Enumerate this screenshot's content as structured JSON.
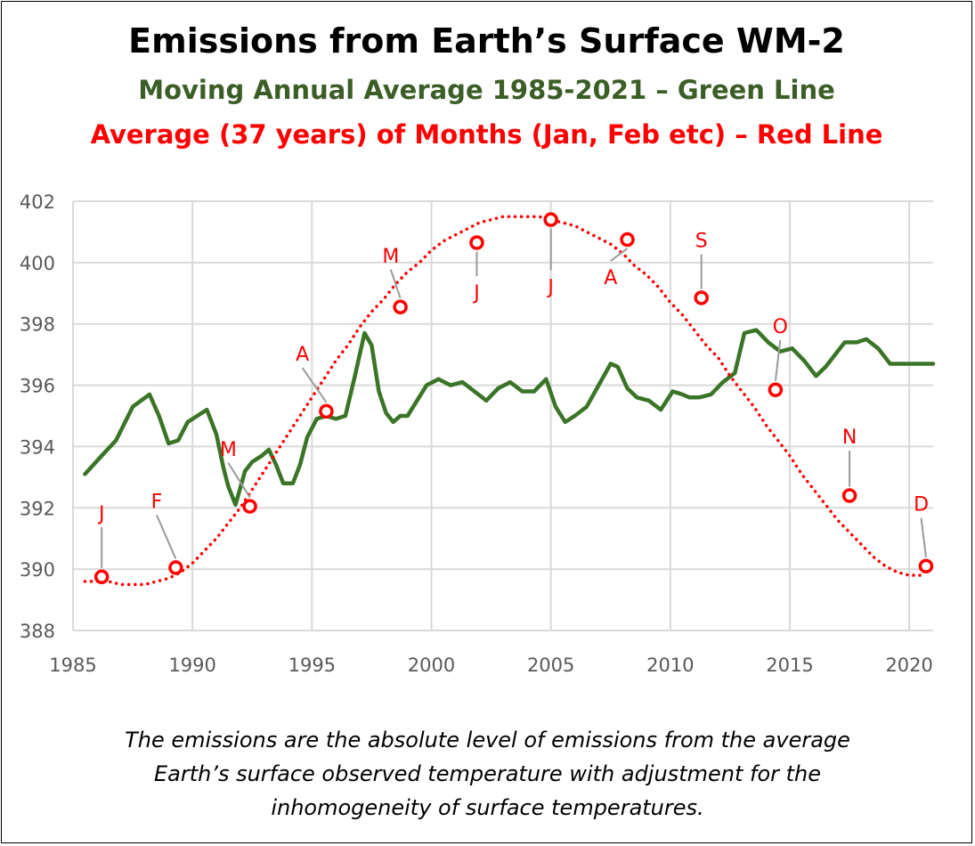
{
  "title": "Emissions from Earth’s Surface WM-2",
  "subtitle_green": "Moving Annual Average 1985-2021 – Green Line",
  "subtitle_red": "Average (37 years) of Months (Jan, Feb etc) – Red Line",
  "caption_lines": [
    "The emissions are the absolute level of emissions from the average",
    "Earth’s surface observed temperature with adjustment for the",
    "inhomogeneity of surface temperatures."
  ],
  "colors": {
    "green": "#3a7426",
    "red": "#ff0000",
    "grid": "#d9d9d9",
    "axis_text": "#595959"
  },
  "chart_data": {
    "type": "line",
    "title": "Emissions from Earth’s Surface WM-2",
    "xlabel": "",
    "ylabel": "",
    "xlim": [
      1985,
      2021
    ],
    "ylim": [
      388,
      402
    ],
    "x_ticks": [
      1985,
      1990,
      1995,
      2000,
      2005,
      2010,
      2015,
      2020
    ],
    "y_ticks": [
      388,
      390,
      392,
      394,
      396,
      398,
      400,
      402
    ],
    "grid": true,
    "series": [
      {
        "name": "Moving Annual Average 1985-2021",
        "color": "#3a7426",
        "x": [
          1985.5,
          1986.2,
          1986.8,
          1987.5,
          1988.2,
          1988.6,
          1989.0,
          1989.4,
          1989.8,
          1990.2,
          1990.6,
          1991.0,
          1991.3,
          1991.5,
          1991.8,
          1992.2,
          1992.5,
          1992.9,
          1993.2,
          1993.5,
          1993.8,
          1994.2,
          1994.5,
          1994.8,
          1995.2,
          1995.6,
          1996.0,
          1996.4,
          1996.8,
          1997.2,
          1997.5,
          1997.8,
          1998.1,
          1998.4,
          1998.7,
          1999.0,
          1999.4,
          1999.8,
          2000.3,
          2000.8,
          2001.3,
          2001.8,
          2002.3,
          2002.8,
          2003.3,
          2003.8,
          2004.3,
          2004.8,
          2005.2,
          2005.6,
          2006.0,
          2006.5,
          2007.0,
          2007.5,
          2007.8,
          2008.2,
          2008.6,
          2009.1,
          2009.6,
          2010.1,
          2010.5,
          2010.8,
          2011.2,
          2011.7,
          2012.2,
          2012.7,
          2013.1,
          2013.6,
          2014.1,
          2014.6,
          2015.1,
          2015.6,
          2016.1,
          2016.5,
          2016.9,
          2017.3,
          2017.8,
          2018.2,
          2018.7,
          2019.2,
          2019.7,
          2020.2,
          2020.6,
          2021.0
        ],
        "values": [
          393.1,
          393.7,
          394.2,
          395.3,
          395.7,
          395.0,
          394.1,
          394.2,
          394.8,
          395.0,
          395.2,
          394.4,
          393.3,
          392.7,
          392.1,
          393.2,
          393.5,
          393.7,
          393.9,
          393.4,
          392.8,
          392.8,
          393.4,
          394.3,
          394.9,
          395.0,
          394.9,
          395.0,
          396.3,
          397.7,
          397.3,
          395.8,
          395.1,
          394.8,
          395.0,
          395.0,
          395.5,
          396.0,
          396.2,
          396.0,
          396.1,
          395.8,
          395.5,
          395.9,
          396.1,
          395.8,
          395.8,
          396.2,
          395.3,
          394.8,
          395.0,
          395.3,
          396.0,
          396.7,
          396.6,
          395.9,
          395.6,
          395.5,
          395.2,
          395.8,
          395.7,
          395.6,
          395.6,
          395.7,
          396.1,
          396.4,
          397.7,
          397.8,
          397.4,
          397.1,
          397.2,
          396.8,
          396.3,
          396.6,
          397.0,
          397.4,
          397.4,
          397.5,
          397.2,
          396.7,
          396.7,
          396.7,
          396.7,
          396.7
        ]
      },
      {
        "name": "Average (37 years) of Months",
        "color": "#ff0000",
        "style": "dotted",
        "x": [
          1985.5,
          1986.0,
          1986.5,
          1987.0,
          1987.5,
          1988.0,
          1988.5,
          1989.0,
          1989.5,
          1990.0,
          1990.5,
          1991.0,
          1991.5,
          1992.0,
          1992.5,
          1993.0,
          1993.5,
          1994.0,
          1994.5,
          1995.0,
          1995.5,
          1996.0,
          1996.5,
          1997.0,
          1997.5,
          1998.0,
          1998.5,
          1999.0,
          1999.5,
          2000.0,
          2000.5,
          2001.0,
          2001.5,
          2002.0,
          2002.5,
          2003.0,
          2003.5,
          2004.0,
          2004.5,
          2005.0,
          2005.5,
          2006.0,
          2006.5,
          2007.0,
          2007.5,
          2008.0,
          2008.5,
          2009.0,
          2009.5,
          2010.0,
          2010.5,
          2011.0,
          2011.5,
          2012.0,
          2012.5,
          2013.0,
          2013.5,
          2014.0,
          2014.5,
          2015.0,
          2015.5,
          2016.0,
          2016.5,
          2017.0,
          2017.5,
          2018.0,
          2018.5,
          2019.0,
          2019.5,
          2020.0,
          2020.5
        ],
        "values": [
          389.6,
          389.6,
          389.6,
          389.5,
          389.5,
          389.5,
          389.6,
          389.7,
          389.9,
          390.2,
          390.6,
          391.0,
          391.5,
          392.0,
          392.6,
          393.2,
          393.8,
          394.4,
          395.0,
          395.6,
          396.2,
          396.8,
          397.3,
          397.9,
          398.4,
          398.8,
          399.3,
          399.7,
          400.0,
          400.4,
          400.7,
          400.9,
          401.1,
          401.3,
          401.4,
          401.5,
          401.5,
          401.5,
          401.5,
          401.4,
          401.3,
          401.2,
          401.0,
          400.8,
          400.6,
          400.3,
          399.9,
          399.6,
          399.2,
          398.7,
          398.3,
          397.8,
          397.3,
          396.9,
          396.3,
          395.8,
          395.3,
          394.7,
          394.2,
          393.7,
          393.1,
          392.6,
          392.1,
          391.6,
          391.2,
          390.8,
          390.4,
          390.1,
          389.9,
          389.8,
          389.8
        ]
      }
    ],
    "month_points": [
      {
        "month": "Jan",
        "label": "J",
        "x": 1986.2,
        "value": 389.75,
        "label_x": 1986.2,
        "label_value": 391.6
      },
      {
        "month": "Feb",
        "label": "F",
        "x": 1989.3,
        "value": 390.05,
        "label_x": 1988.5,
        "label_value": 392.0
      },
      {
        "month": "Mar",
        "label": "M",
        "x": 1992.4,
        "value": 392.05,
        "label_x": 1991.5,
        "label_value": 393.7
      },
      {
        "month": "Apr",
        "label": "A",
        "x": 1995.6,
        "value": 395.15,
        "label_x": 1994.6,
        "label_value": 396.8
      },
      {
        "month": "May",
        "label": "M",
        "x": 1998.7,
        "value": 398.55,
        "label_x": 1998.3,
        "label_value": 400.0
      },
      {
        "month": "Jun",
        "label": "J",
        "x": 2001.9,
        "value": 400.65,
        "label_x": 2001.9,
        "label_value": 398.8
      },
      {
        "month": "Jul",
        "label": "J",
        "x": 2005.0,
        "value": 401.4,
        "label_x": 2005.0,
        "label_value": 399.0
      },
      {
        "month": "Aug",
        "label": "A",
        "x": 2008.2,
        "value": 400.75,
        "label_x": 2007.5,
        "label_value": 399.3
      },
      {
        "month": "Sep",
        "label": "S",
        "x": 2011.3,
        "value": 398.85,
        "label_x": 2011.3,
        "label_value": 400.5
      },
      {
        "month": "Oct",
        "label": "O",
        "x": 2014.4,
        "value": 395.85,
        "label_x": 2014.6,
        "label_value": 397.7
      },
      {
        "month": "Nov",
        "label": "N",
        "x": 2017.5,
        "value": 392.4,
        "label_x": 2017.5,
        "label_value": 394.1
      },
      {
        "month": "Dec",
        "label": "D",
        "x": 2020.7,
        "value": 390.1,
        "label_x": 2020.5,
        "label_value": 391.9
      }
    ]
  }
}
